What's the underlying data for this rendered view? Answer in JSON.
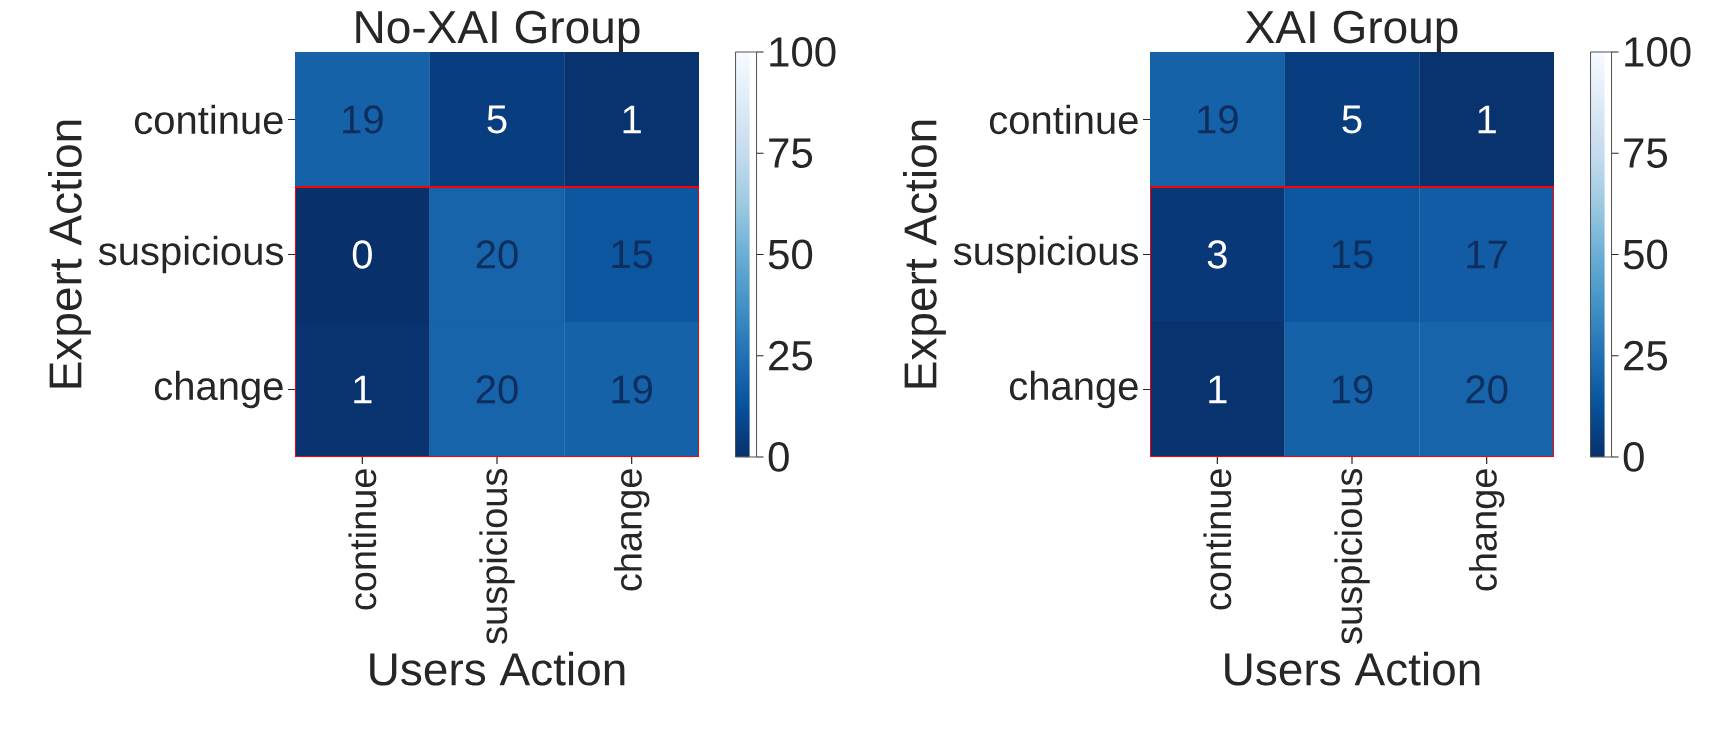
{
  "chart_data": [
    {
      "type": "heatmap",
      "title": "No-XAI Group",
      "xlabel": "Users Action",
      "ylabel": "Expert Action",
      "categories": [
        "continue",
        "suspicious",
        "change"
      ],
      "y_categories": [
        "continue",
        "suspicious",
        "change"
      ],
      "cells": [
        [
          19,
          5,
          1
        ],
        [
          0,
          20,
          15
        ],
        [
          1,
          20,
          19
        ]
      ],
      "data_labels": true,
      "clim": [
        0,
        100
      ],
      "cticks": [
        0,
        25,
        50,
        75,
        100
      ]
    },
    {
      "type": "heatmap",
      "title": "XAI Group",
      "xlabel": "Users Action",
      "ylabel": "Expert Action",
      "categories": [
        "continue",
        "suspicious",
        "change"
      ],
      "y_categories": [
        "continue",
        "suspicious",
        "change"
      ],
      "cells": [
        [
          19,
          5,
          1
        ],
        [
          3,
          15,
          17
        ],
        [
          1,
          19,
          20
        ]
      ],
      "data_labels": true,
      "clim": [
        0,
        100
      ],
      "cticks": [
        0,
        25,
        50,
        75,
        100
      ]
    }
  ]
}
